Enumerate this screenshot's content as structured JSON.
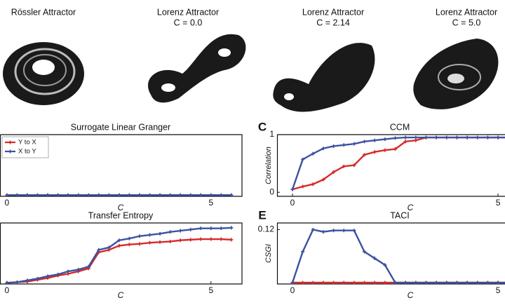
{
  "attractors": [
    {
      "title": "Rössler Attractor"
    },
    {
      "title": "Lorenz Attractor",
      "subtitle": "C = 0.0"
    },
    {
      "title": "Lorenz Attractor",
      "subtitle": "C = 2.14"
    },
    {
      "title": "Lorenz Attractor",
      "subtitle": "C = 5.0"
    }
  ],
  "chart_data": [
    {
      "type": "line",
      "title": "Surrogate Linear Granger",
      "xlabel": "C",
      "x": [
        0,
        0.25,
        0.5,
        0.75,
        1,
        1.25,
        1.5,
        1.75,
        2,
        2.25,
        2.5,
        2.75,
        3,
        3.25,
        3.5,
        3.75,
        4,
        4.25,
        4.5,
        4.75,
        5,
        5.25,
        5.5
      ],
      "series": [
        {
          "name": "Y to X",
          "color": "#d62a2a",
          "values": [
            0,
            0,
            0,
            0,
            0,
            0,
            0,
            0,
            0,
            0,
            0,
            0,
            0,
            0,
            0,
            0,
            0,
            0,
            0,
            0,
            0,
            0,
            0
          ]
        },
        {
          "name": "X to Y",
          "color": "#3a52a0",
          "values": [
            0,
            0,
            0,
            0,
            0,
            0,
            0,
            0,
            0,
            0,
            0,
            0,
            0,
            0,
            0,
            0,
            0,
            0,
            0,
            0,
            0,
            0,
            0
          ]
        }
      ],
      "xlim": [
        -0.17,
        5.76
      ],
      "ylim": [
        -0.02,
        1
      ],
      "xticks": [
        0,
        5
      ],
      "legend": "upper left"
    },
    {
      "type": "line",
      "panel": "C",
      "title": "CCM",
      "xlabel": "C",
      "ylabel": "Correlation",
      "x": [
        0,
        0.25,
        0.5,
        0.75,
        1,
        1.25,
        1.5,
        1.75,
        2,
        2.25,
        2.5,
        2.75,
        3,
        3.25,
        3.5,
        3.75,
        4,
        4.25,
        4.5,
        4.75,
        5,
        5.25,
        5.5
      ],
      "series": [
        {
          "color": "#d62a2a",
          "values": [
            0.05,
            0.1,
            0.14,
            0.22,
            0.35,
            0.45,
            0.47,
            0.65,
            0.7,
            0.73,
            0.75,
            0.88,
            0.9,
            0.95,
            0.95,
            0.95,
            0.95,
            0.95,
            0.95,
            0.95,
            0.95,
            0.95,
            0.95
          ]
        },
        {
          "color": "#3a52a0",
          "values": [
            0.05,
            0.57,
            0.67,
            0.76,
            0.8,
            0.82,
            0.84,
            0.88,
            0.9,
            0.92,
            0.94,
            0.95,
            0.95,
            0.95,
            0.95,
            0.95,
            0.95,
            0.95,
            0.95,
            0.95,
            0.95,
            0.95,
            0.95
          ]
        }
      ],
      "xlim": [
        -0.375,
        5.17
      ],
      "ylim": [
        -0.07,
        1
      ],
      "xticks": [
        0,
        5
      ],
      "yticks": [
        0,
        1
      ]
    },
    {
      "type": "line",
      "title": "Transfer Entropy",
      "xlabel": "C",
      "x": [
        0,
        0.25,
        0.5,
        0.75,
        1,
        1.25,
        1.5,
        1.75,
        2,
        2.25,
        2.5,
        2.75,
        3,
        3.25,
        3.5,
        3.75,
        4,
        4.25,
        4.5,
        4.75,
        5,
        5.25,
        5.5
      ],
      "series": [
        {
          "color": "#d62a2a",
          "values": [
            0,
            0.01,
            0.02,
            0.05,
            0.08,
            0.12,
            0.15,
            0.19,
            0.24,
            0.51,
            0.55,
            0.62,
            0.64,
            0.65,
            0.67,
            0.68,
            0.69,
            0.71,
            0.72,
            0.73,
            0.73,
            0.73,
            0.72
          ]
        },
        {
          "color": "#3a52a0",
          "values": [
            0,
            0.01,
            0.04,
            0.07,
            0.11,
            0.14,
            0.19,
            0.22,
            0.27,
            0.55,
            0.59,
            0.71,
            0.74,
            0.78,
            0.8,
            0.82,
            0.85,
            0.87,
            0.89,
            0.91,
            0.91,
            0.91,
            0.92
          ]
        }
      ],
      "xlim": [
        -0.17,
        5.76
      ],
      "ylim": [
        -0.02,
        1
      ],
      "xticks": [
        0,
        5
      ]
    },
    {
      "type": "line",
      "panel": "E",
      "title": "TACI",
      "xlabel": "C",
      "ylabel": "CSGI",
      "x": [
        0,
        0.25,
        0.5,
        0.75,
        1,
        1.25,
        1.5,
        1.75,
        2,
        2.25,
        2.5,
        2.75,
        3,
        3.25,
        3.5,
        3.75,
        4,
        4.25,
        4.5,
        4.75,
        5,
        5.25,
        5.5
      ],
      "series": [
        {
          "color": "#d62a2a",
          "values": [
            0,
            0,
            0,
            0,
            0,
            0,
            0,
            0,
            0,
            0,
            0,
            0,
            0,
            0,
            0,
            0,
            0,
            0,
            0,
            0,
            0,
            0,
            0
          ]
        },
        {
          "color": "#3a52a0",
          "values": [
            0,
            0.07,
            0.12,
            0.115,
            0.118,
            0.118,
            0.118,
            0.07,
            0.055,
            0.04,
            0,
            0,
            0,
            0,
            0,
            0,
            0,
            0,
            0,
            0,
            0,
            0,
            0
          ]
        }
      ],
      "xlim": [
        -0.375,
        5.17
      ],
      "ylim": [
        -0.003,
        0.135
      ],
      "xticks": [
        0,
        5
      ],
      "yticks": [
        0.12
      ]
    }
  ]
}
